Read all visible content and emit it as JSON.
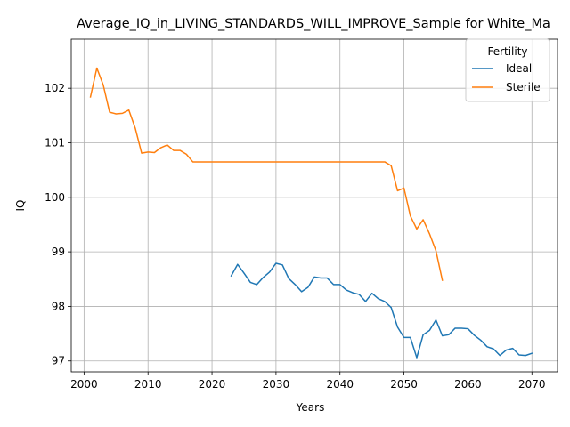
{
  "chart_data": {
    "type": "line",
    "title": "Average_IQ_in_LIVING_STANDARDS_WILL_IMPROVE_Sample for White_Ma",
    "xlabel": "Years",
    "ylabel": "IQ",
    "xlim": [
      1998,
      2074
    ],
    "ylim": [
      96.8,
      102.9
    ],
    "xticks": [
      2000,
      2010,
      2020,
      2030,
      2040,
      2050,
      2060,
      2070
    ],
    "yticks": [
      97,
      98,
      99,
      100,
      101,
      102
    ],
    "grid": true,
    "legend": {
      "title": "Fertility",
      "position": "top-right"
    },
    "series": [
      {
        "name": "Ideal",
        "color": "#1f77b4",
        "x": [
          2023,
          2024,
          2025,
          2026,
          2027,
          2028,
          2029,
          2030,
          2031,
          2032,
          2033,
          2034,
          2035,
          2036,
          2037,
          2038,
          2039,
          2040,
          2041,
          2042,
          2043,
          2044,
          2045,
          2046,
          2047,
          2048,
          2049,
          2050,
          2051,
          2052,
          2053,
          2054,
          2055,
          2056,
          2057,
          2058,
          2059,
          2060,
          2061,
          2062,
          2063,
          2064,
          2065,
          2066,
          2067,
          2068,
          2069,
          2070
        ],
        "y": [
          98.56,
          98.77,
          98.61,
          98.44,
          98.4,
          98.53,
          98.63,
          98.79,
          98.76,
          98.51,
          98.4,
          98.27,
          98.35,
          98.54,
          98.52,
          98.52,
          98.4,
          98.4,
          98.3,
          98.25,
          98.22,
          98.09,
          98.24,
          98.14,
          98.09,
          97.98,
          97.62,
          97.43,
          97.43,
          97.06,
          97.48,
          97.56,
          97.75,
          97.46,
          97.48,
          97.6,
          97.6,
          97.59,
          97.47,
          97.38,
          97.26,
          97.22,
          97.1,
          97.2,
          97.23,
          97.11,
          97.1,
          97.14
        ]
      },
      {
        "name": "Sterile",
        "color": "#ff7f0e",
        "x": [
          2001,
          2002,
          2003,
          2004,
          2005,
          2006,
          2007,
          2008,
          2009,
          2010,
          2011,
          2012,
          2013,
          2014,
          2015,
          2016,
          2017,
          2018,
          2019,
          2020,
          2021,
          2022,
          2023,
          2024,
          2025,
          2026,
          2027,
          2028,
          2029,
          2030,
          2031,
          2032,
          2033,
          2034,
          2035,
          2036,
          2037,
          2038,
          2039,
          2040,
          2041,
          2042,
          2043,
          2044,
          2045,
          2046,
          2047,
          2048,
          2049,
          2050,
          2051,
          2052,
          2053,
          2054,
          2055,
          2056
        ],
        "y": [
          101.84,
          102.37,
          102.06,
          101.56,
          101.53,
          101.54,
          101.6,
          101.27,
          100.81,
          100.83,
          100.82,
          100.91,
          100.96,
          100.86,
          100.86,
          100.79,
          100.65,
          100.65,
          100.65,
          100.65,
          100.65,
          100.65,
          100.65,
          100.65,
          100.65,
          100.65,
          100.65,
          100.65,
          100.65,
          100.65,
          100.65,
          100.65,
          100.65,
          100.65,
          100.65,
          100.65,
          100.65,
          100.65,
          100.65,
          100.65,
          100.65,
          100.65,
          100.65,
          100.65,
          100.65,
          100.65,
          100.65,
          100.58,
          100.12,
          100.17,
          99.66,
          99.42,
          99.59,
          99.33,
          99.02,
          98.48
        ]
      }
    ]
  }
}
